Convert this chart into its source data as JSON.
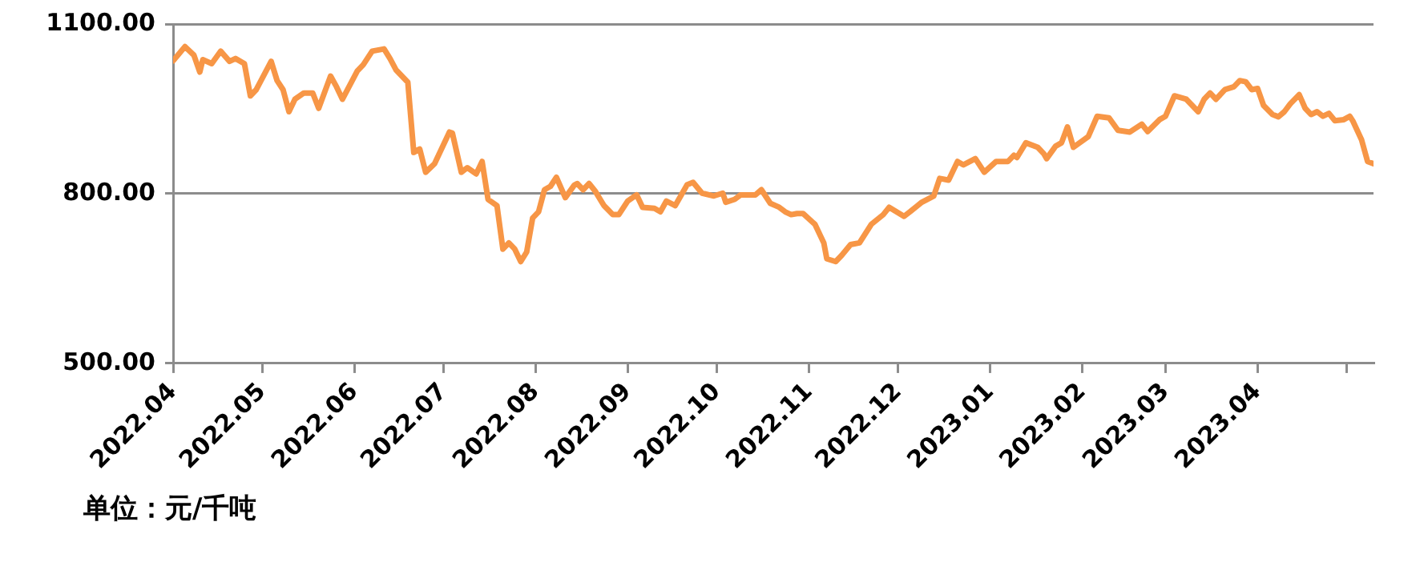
{
  "chart_data": {
    "type": "line",
    "annotations": [
      "单位：元/千吨"
    ],
    "xlim": [
      "2022-04-01",
      "2023-05-10"
    ],
    "xticks": [
      {
        "value": "2022-04-01",
        "label": "2022.04"
      },
      {
        "value": "2022-05-01",
        "label": "2022.05"
      },
      {
        "value": "2022-06-01",
        "label": "2022.06"
      },
      {
        "value": "2022-07-01",
        "label": "2022.07"
      },
      {
        "value": "2022-08-01",
        "label": "2022.08"
      },
      {
        "value": "2022-09-01",
        "label": "2022.09"
      },
      {
        "value": "2022-10-01",
        "label": "2022.10"
      },
      {
        "value": "2022-11-01",
        "label": "2022.11"
      },
      {
        "value": "2022-12-01",
        "label": "2022.12"
      },
      {
        "value": "2023-01-01",
        "label": "2023.01"
      },
      {
        "value": "2023-02-01",
        "label": "2023.02"
      },
      {
        "value": "2023-03-01",
        "label": "2023.03"
      },
      {
        "value": "2023-04-01",
        "label": "2023.04"
      },
      {
        "value": "2023-05-01",
        "label": null
      }
    ],
    "ylim": [
      500,
      1100
    ],
    "yticks": [
      {
        "value": 500,
        "label": "500.00"
      },
      {
        "value": 800,
        "label": "800.00"
      },
      {
        "value": 1100,
        "label": "1100.00"
      }
    ],
    "grid": "y",
    "legend": false,
    "marker": "none",
    "line_style": "solid",
    "series": [
      {
        "color": "#f79646",
        "x": [
          "2022-04-01",
          "2022-04-05",
          "2022-04-08",
          "2022-04-10",
          "2022-04-11",
          "2022-04-14",
          "2022-04-17",
          "2022-04-20",
          "2022-04-22",
          "2022-04-25",
          "2022-04-27",
          "2022-04-29",
          "2022-05-04",
          "2022-05-06",
          "2022-05-08",
          "2022-05-10",
          "2022-05-12",
          "2022-05-15",
          "2022-05-18",
          "2022-05-20",
          "2022-05-24",
          "2022-05-26",
          "2022-05-28",
          "2022-06-02",
          "2022-06-04",
          "2022-06-07",
          "2022-06-11",
          "2022-06-13",
          "2022-06-15",
          "2022-06-19",
          "2022-06-21",
          "2022-06-23",
          "2022-06-25",
          "2022-06-28",
          "2022-07-03",
          "2022-07-04",
          "2022-07-07",
          "2022-07-09",
          "2022-07-12",
          "2022-07-14",
          "2022-07-16",
          "2022-07-19",
          "2022-07-21",
          "2022-07-23",
          "2022-07-25",
          "2022-07-27",
          "2022-07-29",
          "2022-07-31",
          "2022-08-02",
          "2022-08-04",
          "2022-08-06",
          "2022-08-08",
          "2022-08-11",
          "2022-08-14",
          "2022-08-15",
          "2022-08-17",
          "2022-08-19",
          "2022-08-21",
          "2022-08-24",
          "2022-08-27",
          "2022-08-29",
          "2022-09-01",
          "2022-09-04",
          "2022-09-06",
          "2022-09-10",
          "2022-09-12",
          "2022-09-14",
          "2022-09-17",
          "2022-09-21",
          "2022-09-23",
          "2022-09-26",
          "2022-09-30",
          "2022-10-03",
          "2022-10-04",
          "2022-10-07",
          "2022-10-09",
          "2022-10-14",
          "2022-10-16",
          "2022-10-19",
          "2022-10-22",
          "2022-10-24",
          "2022-10-26",
          "2022-10-28",
          "2022-10-30",
          "2022-11-03",
          "2022-11-06",
          "2022-11-07",
          "2022-11-10",
          "2022-11-12",
          "2022-11-15",
          "2022-11-18",
          "2022-11-22",
          "2022-11-26",
          "2022-11-28",
          "2022-12-03",
          "2022-12-05",
          "2022-12-09",
          "2022-12-13",
          "2022-12-15",
          "2022-12-18",
          "2022-12-21",
          "2022-12-23",
          "2022-12-27",
          "2022-12-30",
          "2023-01-03",
          "2023-01-07",
          "2023-01-09",
          "2023-01-10",
          "2023-01-13",
          "2023-01-17",
          "2023-01-19",
          "2023-01-20",
          "2023-01-23",
          "2023-01-25",
          "2023-01-27",
          "2023-01-29",
          "2023-02-03",
          "2023-02-06",
          "2023-02-10",
          "2023-02-13",
          "2023-02-17",
          "2023-02-21",
          "2023-02-23",
          "2023-02-27",
          "2023-03-01",
          "2023-03-04",
          "2023-03-08",
          "2023-03-12",
          "2023-03-14",
          "2023-03-16",
          "2023-03-18",
          "2023-03-21",
          "2023-03-24",
          "2023-03-26",
          "2023-03-28",
          "2023-03-30",
          "2023-04-01",
          "2023-04-03",
          "2023-04-06",
          "2023-04-08",
          "2023-04-10",
          "2023-04-12",
          "2023-04-15",
          "2023-04-17",
          "2023-04-19",
          "2023-04-21",
          "2023-04-23",
          "2023-04-25",
          "2023-04-27",
          "2023-04-30",
          "2023-05-02",
          "2023-05-03",
          "2023-05-06",
          "2023-05-08",
          "2023-05-10"
        ],
        "values": [
          1035,
          1060,
          1045,
          1015,
          1037,
          1030,
          1052,
          1034,
          1039,
          1030,
          973,
          984,
          1034,
          1000,
          984,
          945,
          967,
          978,
          978,
          951,
          1008,
          989,
          967,
          1017,
          1028,
          1052,
          1056,
          1039,
          1019,
          997,
          873,
          879,
          838,
          853,
          909,
          907,
          838,
          846,
          835,
          857,
          790,
          779,
          702,
          713,
          702,
          680,
          697,
          757,
          768,
          807,
          813,
          829,
          793,
          815,
          818,
          807,
          818,
          805,
          779,
          763,
          763,
          787,
          798,
          776,
          774,
          768,
          787,
          779,
          816,
          820,
          801,
          796,
          801,
          785,
          790,
          798,
          798,
          807,
          783,
          776,
          768,
          763,
          765,
          765,
          746,
          713,
          685,
          680,
          691,
          710,
          713,
          746,
          763,
          776,
          760,
          768,
          785,
          796,
          827,
          824,
          857,
          851,
          862,
          838,
          857,
          857,
          868,
          864,
          890,
          882,
          871,
          862,
          884,
          890,
          918,
          882,
          901,
          937,
          934,
          912,
          909,
          923,
          910,
          931,
          937,
          973,
          967,
          945,
          967,
          978,
          967,
          984,
          989,
          1000,
          998,
          984,
          986,
          956,
          940,
          936,
          945,
          959,
          975,
          951,
          940,
          945,
          937,
          942,
          929,
          931,
          937,
          929,
          895,
          857,
          853
        ]
      }
    ]
  }
}
